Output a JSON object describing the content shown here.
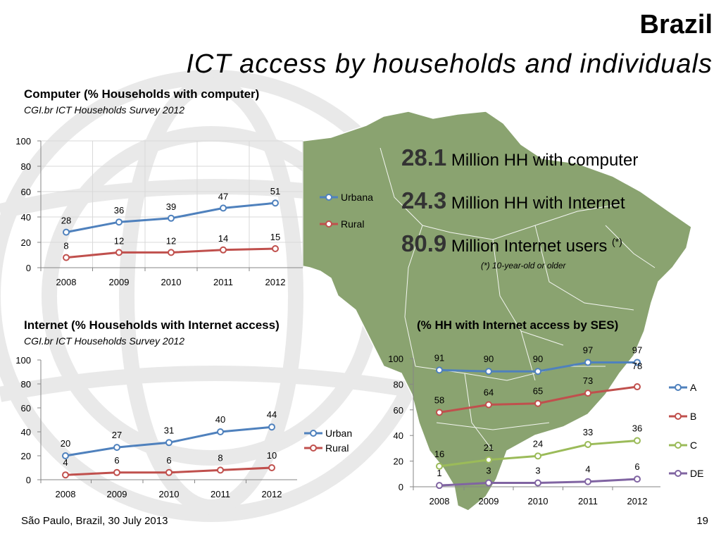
{
  "slide": {
    "title": "Brazil",
    "subtitle": "ICT access by households and individuals",
    "footer": "São Paulo, Brazil, 30 July 2013",
    "page_number": "19"
  },
  "stats": [
    {
      "value": "28.1",
      "text": "Million HH with computer",
      "note": ""
    },
    {
      "value": "24.3",
      "text": "Million HH with Internet",
      "note": ""
    },
    {
      "value": "80.9",
      "text": "Million Internet users",
      "note": "(*)"
    }
  ],
  "footnote": "(*) 10-year-old or older",
  "colors": {
    "map_fill": "#8aa370",
    "map_stroke": "#ffffff",
    "blue": "#4f81bd",
    "red": "#c0504d",
    "green": "#9bbb59",
    "purple": "#8064a2"
  },
  "chart_data": [
    {
      "type": "line",
      "title": "Computer (% Households with computer)",
      "source": "CGI.br ICT Households Survey 2012",
      "categories": [
        "2008",
        "2009",
        "2010",
        "2011",
        "2012"
      ],
      "ylim": [
        0,
        100
      ],
      "yticks": [
        0,
        20,
        40,
        60,
        80,
        100
      ],
      "grid": true,
      "legend": "right",
      "series": [
        {
          "name": "Urbana",
          "color": "#4f81bd",
          "values": [
            28,
            36,
            39,
            47,
            51
          ]
        },
        {
          "name": "Rural",
          "color": "#c0504d",
          "values": [
            8,
            12,
            12,
            14,
            15
          ]
        }
      ]
    },
    {
      "type": "line",
      "title": "Internet (% Households with Internet access)",
      "source": "CGI.br ICT Households Survey 2012",
      "categories": [
        "2008",
        "2009",
        "2010",
        "2011",
        "2012"
      ],
      "ylim": [
        0,
        100
      ],
      "yticks": [
        0,
        20,
        40,
        60,
        80,
        100
      ],
      "grid": false,
      "legend": "right",
      "series": [
        {
          "name": "Urban",
          "color": "#4f81bd",
          "values": [
            20,
            27,
            31,
            40,
            44
          ]
        },
        {
          "name": "Rural",
          "color": "#c0504d",
          "values": [
            4,
            6,
            6,
            8,
            10
          ]
        }
      ]
    },
    {
      "type": "line",
      "title": "(% HH with Internet access by SES)",
      "source": "",
      "categories": [
        "2008",
        "2009",
        "2010",
        "2011",
        "2012"
      ],
      "ylim": [
        0,
        100
      ],
      "yticks": [
        0,
        20,
        40,
        60,
        80,
        100
      ],
      "grid": false,
      "legend": "right",
      "series": [
        {
          "name": "A",
          "color": "#4f81bd",
          "values": [
            91,
            90,
            90,
            97,
            97
          ]
        },
        {
          "name": "B",
          "color": "#c0504d",
          "values": [
            58,
            64,
            65,
            73,
            78
          ]
        },
        {
          "name": "C",
          "color": "#9bbb59",
          "values": [
            16,
            21,
            24,
            33,
            36
          ]
        },
        {
          "name": "DE",
          "color": "#8064a2",
          "values": [
            1,
            3,
            3,
            4,
            6
          ]
        }
      ]
    }
  ]
}
